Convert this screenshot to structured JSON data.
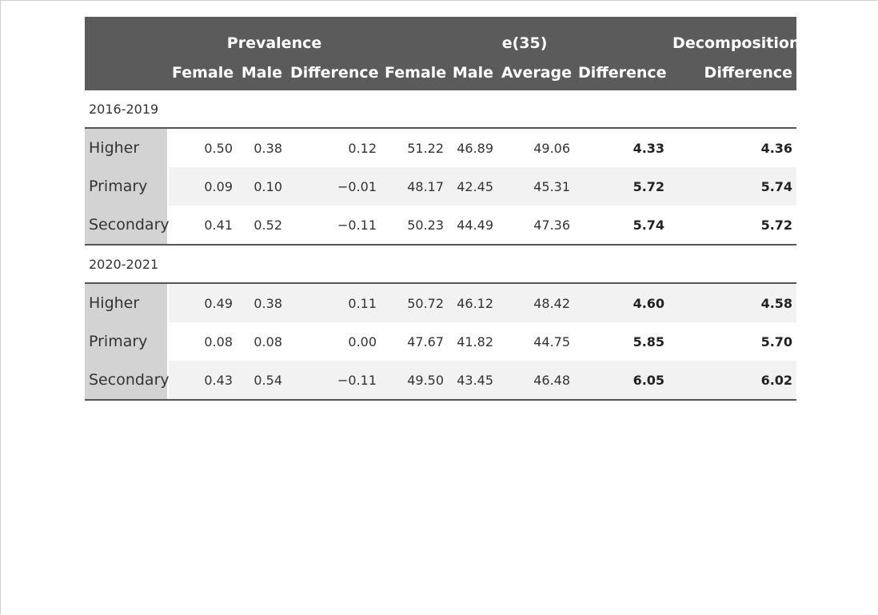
{
  "table": {
    "spanners": {
      "prevalence": "Prevalence",
      "e35": "e(35)",
      "decomposition": "Decomposition"
    },
    "columns": [
      "",
      "Female",
      "Male",
      "Difference",
      "Female",
      "Male",
      "Average",
      "Difference",
      "Difference"
    ],
    "groups": [
      {
        "label": "2016-2019",
        "rows": [
          {
            "stub": "Higher",
            "cells": [
              "0.50",
              "0.38",
              "0.12",
              "51.22",
              "46.89",
              "49.06",
              "4.33",
              "4.36"
            ]
          },
          {
            "stub": "Primary",
            "cells": [
              "0.09",
              "0.10",
              "−0.01",
              "48.17",
              "42.45",
              "45.31",
              "5.72",
              "5.74"
            ]
          },
          {
            "stub": "Secondary",
            "cells": [
              "0.41",
              "0.52",
              "−0.11",
              "50.23",
              "44.49",
              "47.36",
              "5.74",
              "5.72"
            ]
          }
        ]
      },
      {
        "label": "2020-2021",
        "rows": [
          {
            "stub": "Higher",
            "cells": [
              "0.49",
              "0.38",
              "0.11",
              "50.72",
              "46.12",
              "48.42",
              "4.60",
              "4.58"
            ]
          },
          {
            "stub": "Primary",
            "cells": [
              "0.08",
              "0.08",
              "0.00",
              "47.67",
              "41.82",
              "44.75",
              "5.85",
              "5.70"
            ]
          },
          {
            "stub": "Secondary",
            "cells": [
              "0.43",
              "0.54",
              "−0.11",
              "49.50",
              "43.45",
              "46.48",
              "6.05",
              "6.02"
            ]
          }
        ]
      }
    ]
  },
  "colors": {
    "header_bg": "#5b5b5b",
    "stub_bg": "#d3d3d3",
    "stripe_bg": "#f2f2f2",
    "rule": "#555555"
  }
}
